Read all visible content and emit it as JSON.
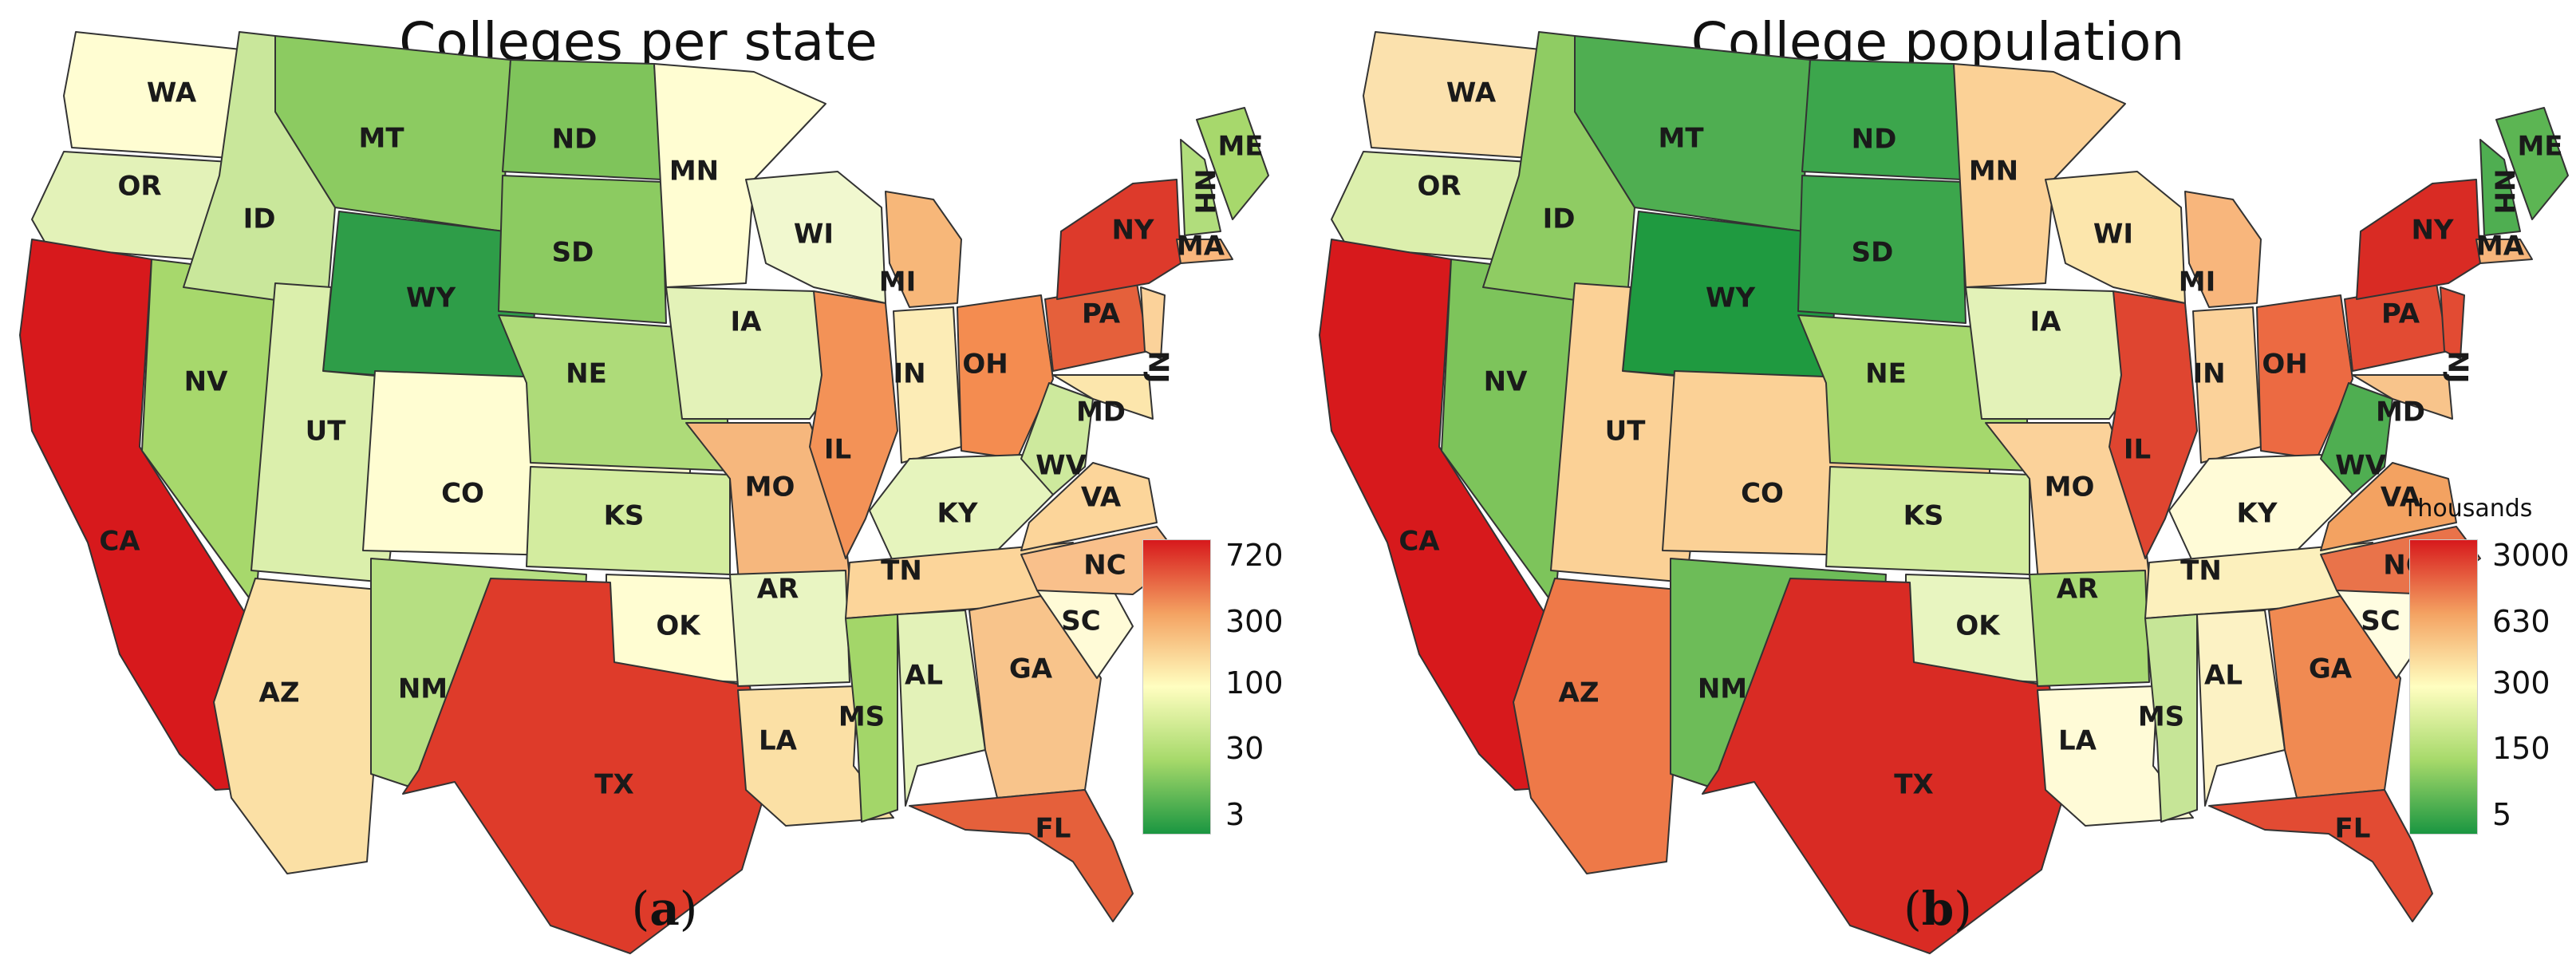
{
  "panel_a": {
    "title": "Colleges per state",
    "caption_letter": "a",
    "legend": {
      "ticks": [
        "720",
        "300",
        "100",
        "30",
        "3"
      ],
      "colors": [
        "#d7191c",
        "#f4a262",
        "#fffec0",
        "#a6d96a",
        "#1a9641"
      ]
    },
    "states": [
      {
        "abbr": "WA",
        "color": "#fffdd2"
      },
      {
        "abbr": "OR",
        "color": "#e3f2b8"
      },
      {
        "abbr": "CA",
        "color": "#d7191c"
      },
      {
        "abbr": "NV",
        "color": "#a7d86c"
      },
      {
        "abbr": "ID",
        "color": "#c9e79b"
      },
      {
        "abbr": "MT",
        "color": "#8ccb61"
      },
      {
        "abbr": "WY",
        "color": "#2e9d48"
      },
      {
        "abbr": "UT",
        "color": "#dbefac"
      },
      {
        "abbr": "AZ",
        "color": "#fbe0a5"
      },
      {
        "abbr": "CO",
        "color": "#fffdd2"
      },
      {
        "abbr": "NM",
        "color": "#b6df82"
      },
      {
        "abbr": "ND",
        "color": "#7fc45b"
      },
      {
        "abbr": "SD",
        "color": "#8ccb61"
      },
      {
        "abbr": "NE",
        "color": "#aedb79"
      },
      {
        "abbr": "KS",
        "color": "#d3ec9f"
      },
      {
        "abbr": "OK",
        "color": "#fffdd2"
      },
      {
        "abbr": "TX",
        "color": "#de3b2a"
      },
      {
        "abbr": "MN",
        "color": "#fffdd2"
      },
      {
        "abbr": "IA",
        "color": "#e3f2b8"
      },
      {
        "abbr": "MO",
        "color": "#f6b77d"
      },
      {
        "abbr": "AR",
        "color": "#e9f5c2"
      },
      {
        "abbr": "LA",
        "color": "#fbe0a5"
      },
      {
        "abbr": "WI",
        "color": "#f1f8cf"
      },
      {
        "abbr": "IL",
        "color": "#f39257"
      },
      {
        "abbr": "MI",
        "color": "#f7b779"
      },
      {
        "abbr": "IN",
        "color": "#fcecb6"
      },
      {
        "abbr": "OH",
        "color": "#f48c50"
      },
      {
        "abbr": "KY",
        "color": "#e6f4bd"
      },
      {
        "abbr": "TN",
        "color": "#fcd59a"
      },
      {
        "abbr": "MS",
        "color": "#a3d669"
      },
      {
        "abbr": "AL",
        "color": "#e3f2b8"
      },
      {
        "abbr": "GA",
        "color": "#f8c48b"
      },
      {
        "abbr": "FL",
        "color": "#e5603b"
      },
      {
        "abbr": "SC",
        "color": "#fffbd7"
      },
      {
        "abbr": "NC",
        "color": "#f9c08b"
      },
      {
        "abbr": "VA",
        "color": "#fcd59a"
      },
      {
        "abbr": "WV",
        "color": "#cde99d"
      },
      {
        "abbr": "MD",
        "color": "#fce6ac"
      },
      {
        "abbr": "PA",
        "color": "#e5603b"
      },
      {
        "abbr": "NY",
        "color": "#dd3a2b"
      },
      {
        "abbr": "NJ",
        "color": "#fbd29a"
      },
      {
        "abbr": "MA",
        "color": "#f8b67c"
      },
      {
        "abbr": "ME",
        "color": "#a7d86c"
      },
      {
        "abbr": "NH",
        "color": "#b1dd7c"
      }
    ]
  },
  "panel_b": {
    "title": "College population",
    "caption_letter": "b",
    "legend": {
      "unit": "Thousands",
      "ticks": [
        "3000",
        "630",
        "300",
        "150",
        "5"
      ],
      "colors": [
        "#d7191c",
        "#f4a262",
        "#fffec0",
        "#a6d96a",
        "#1a9641"
      ]
    },
    "states": [
      {
        "abbr": "WA",
        "color": "#fbe1ad"
      },
      {
        "abbr": "OR",
        "color": "#dcefad"
      },
      {
        "abbr": "CA",
        "color": "#d7191c"
      },
      {
        "abbr": "NV",
        "color": "#7dc45b"
      },
      {
        "abbr": "ID",
        "color": "#8fcc63"
      },
      {
        "abbr": "MT",
        "color": "#4fae51"
      },
      {
        "abbr": "WY",
        "color": "#1f9a40"
      },
      {
        "abbr": "UT",
        "color": "#fbd196"
      },
      {
        "abbr": "AZ",
        "color": "#ee7948"
      },
      {
        "abbr": "CO",
        "color": "#fbd196"
      },
      {
        "abbr": "NM",
        "color": "#6dbc58"
      },
      {
        "abbr": "ND",
        "color": "#3ca64c"
      },
      {
        "abbr": "SD",
        "color": "#3ca64c"
      },
      {
        "abbr": "NE",
        "color": "#a5d86d"
      },
      {
        "abbr": "KS",
        "color": "#d3ec9f"
      },
      {
        "abbr": "OK",
        "color": "#e8f5c0"
      },
      {
        "abbr": "TX",
        "color": "#d92b24"
      },
      {
        "abbr": "MN",
        "color": "#fbd196"
      },
      {
        "abbr": "IA",
        "color": "#e3f2b8"
      },
      {
        "abbr": "MO",
        "color": "#fbd29a"
      },
      {
        "abbr": "AR",
        "color": "#a9da74"
      },
      {
        "abbr": "LA",
        "color": "#fffbd7"
      },
      {
        "abbr": "WI",
        "color": "#fce6ac"
      },
      {
        "abbr": "IL",
        "color": "#df4530"
      },
      {
        "abbr": "MI",
        "color": "#f8b67c"
      },
      {
        "abbr": "IN",
        "color": "#fbd29a"
      },
      {
        "abbr": "OH",
        "color": "#ec6a42"
      },
      {
        "abbr": "KY",
        "color": "#fffbd7"
      },
      {
        "abbr": "TN",
        "color": "#fcf0bd"
      },
      {
        "abbr": "MS",
        "color": "#c6e597"
      },
      {
        "abbr": "AL",
        "color": "#fcf2c4"
      },
      {
        "abbr": "GA",
        "color": "#f08a52"
      },
      {
        "abbr": "FL",
        "color": "#e24b33"
      },
      {
        "abbr": "SC",
        "color": "#fffde1"
      },
      {
        "abbr": "NC",
        "color": "#e9734a"
      },
      {
        "abbr": "VA",
        "color": "#f3a261"
      },
      {
        "abbr": "WV",
        "color": "#4fae51"
      },
      {
        "abbr": "MD",
        "color": "#f8c48b"
      },
      {
        "abbr": "PA",
        "color": "#e24b33"
      },
      {
        "abbr": "NY",
        "color": "#d92b24"
      },
      {
        "abbr": "NJ",
        "color": "#e24b33"
      },
      {
        "abbr": "MA",
        "color": "#f6b57b"
      },
      {
        "abbr": "ME",
        "color": "#5cb553"
      },
      {
        "abbr": "NH",
        "color": "#4fae51"
      }
    ]
  }
}
